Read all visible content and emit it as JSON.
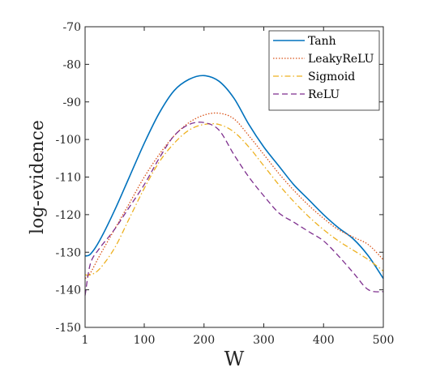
{
  "chart_data": {
    "type": "line",
    "xlabel": "W",
    "ylabel": "log-evidence",
    "xlim": [
      1,
      500
    ],
    "ylim": [
      -150,
      -70
    ],
    "xticks": [
      1,
      100,
      200,
      300,
      400,
      500
    ],
    "yticks": [
      -150,
      -140,
      -130,
      -120,
      -110,
      -100,
      -90,
      -80,
      -70
    ],
    "grid": false,
    "legend_position": "top-right",
    "series": [
      {
        "name": "Tanh",
        "color": "#0072BD",
        "dash": "solid",
        "x": [
          1,
          10,
          25,
          50,
          75,
          100,
          125,
          150,
          175,
          200,
          225,
          250,
          275,
          300,
          325,
          350,
          375,
          400,
          425,
          450,
          475,
          500
        ],
        "y": [
          -131,
          -130.5,
          -127,
          -119,
          -110,
          -101,
          -93,
          -87,
          -84,
          -83,
          -84.5,
          -89,
          -96,
          -102,
          -107,
          -112,
          -116,
          -120,
          -123.5,
          -126.5,
          -131,
          -137
        ]
      },
      {
        "name": "LeakyReLU",
        "color": "#D95319",
        "dash": "dotted",
        "x": [
          1,
          10,
          25,
          50,
          75,
          100,
          125,
          150,
          175,
          200,
          225,
          250,
          275,
          300,
          325,
          350,
          375,
          400,
          425,
          450,
          475,
          500
        ],
        "y": [
          -137,
          -135.5,
          -131,
          -124,
          -117,
          -110,
          -104,
          -99,
          -95.5,
          -93.5,
          -93,
          -94.5,
          -99,
          -104,
          -109,
          -113.5,
          -117.5,
          -121,
          -124,
          -126,
          -128,
          -132
        ]
      },
      {
        "name": "Sigmoid",
        "color": "#EDB120",
        "dash": "dashdot",
        "x": [
          1,
          10,
          25,
          50,
          75,
          100,
          125,
          150,
          175,
          200,
          225,
          250,
          275,
          300,
          325,
          350,
          375,
          400,
          425,
          450,
          475,
          500
        ],
        "y": [
          -136,
          -136,
          -134.5,
          -129,
          -121,
          -113,
          -106,
          -101,
          -97.5,
          -96,
          -96,
          -98,
          -102,
          -107,
          -112,
          -116.5,
          -120.5,
          -124,
          -127,
          -129.5,
          -132,
          -135
        ]
      },
      {
        "name": "ReLU",
        "color": "#7E2F8E",
        "dash": "dashed",
        "x": [
          1,
          10,
          25,
          50,
          75,
          100,
          125,
          150,
          175,
          200,
          225,
          250,
          275,
          300,
          325,
          350,
          375,
          400,
          425,
          450,
          475,
          500
        ],
        "y": [
          -141.5,
          -133,
          -129,
          -124,
          -118,
          -112,
          -105,
          -99,
          -96,
          -95.5,
          -97.5,
          -104,
          -110,
          -115,
          -119.5,
          -122,
          -124.5,
          -127,
          -131,
          -135.5,
          -140,
          -140.5
        ]
      }
    ]
  }
}
